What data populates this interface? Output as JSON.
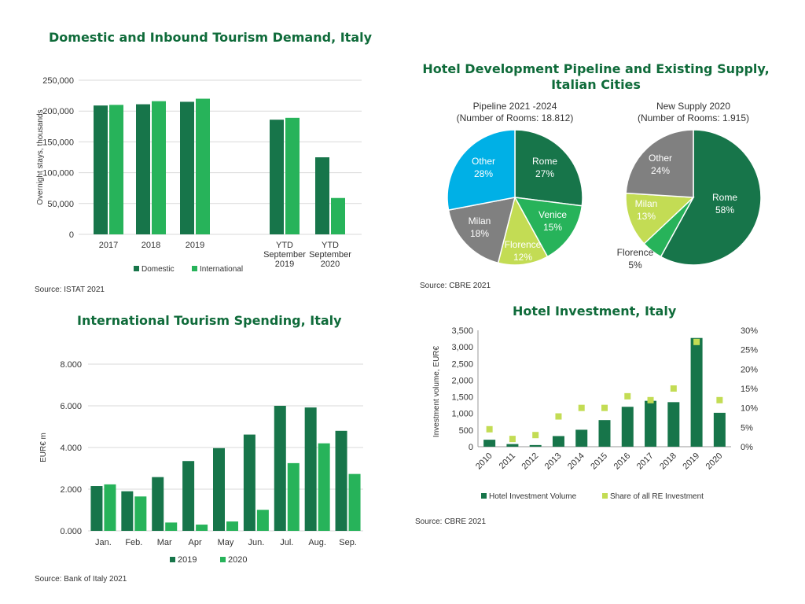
{
  "charts": {
    "domestic": {
      "title": "Domestic and Inbound Tourism Demand, Italy",
      "source": "Source: ISTAT 2021",
      "ylabel": "Overnight stays, thousands",
      "y_ticks": [
        "0",
        "50,000",
        "100,000",
        "150,000",
        "200,000",
        "250,000"
      ],
      "legend": [
        "Domestic",
        "International"
      ]
    },
    "pipeline": {
      "title_line1": "Hotel Development Pipeline and Existing Supply,",
      "title_line2": "Italian Cities",
      "source": "Source: CBRE 2021",
      "pie1_title_line1": "Pipeline 2021 -2024",
      "pie1_title_line2": "(Number of Rooms: 18.812)",
      "pie2_title_line1": "New Supply 2020",
      "pie2_title_line2": "(Number of Rooms: 1.915)"
    },
    "spending": {
      "title": "International Tourism Spending, Italy",
      "source": "Source: Bank of Italy 2021",
      "ylabel": "EUR€ m",
      "y_ticks": [
        "0.000",
        "2.000",
        "4.000",
        "6.000",
        "8.000"
      ],
      "legend": [
        "2019",
        "2020"
      ]
    },
    "investment": {
      "title": "Hotel Investment, Italy",
      "source": "Source: CBRE 2021",
      "ylabel": "Investment volume, EUR€",
      "y_ticks": [
        "0",
        "500",
        "1,000",
        "1,500",
        "2,000",
        "2,500",
        "3,000",
        "3,500"
      ],
      "y2_ticks": [
        "0%",
        "5%",
        "10%",
        "15%",
        "20%",
        "25%",
        "30%"
      ],
      "legend": [
        "Hotel Investment Volume",
        "Share of all RE Investment"
      ]
    }
  },
  "colors": {
    "dark_green": "#17754a",
    "bright_green": "#27b35a",
    "lime": "#c3dc54",
    "blue": "#00b0e6",
    "grey": "#808080",
    "title_green": "#0f6b3a"
  },
  "chart_data": [
    {
      "type": "bar",
      "title": "Domestic and Inbound Tourism Demand, Italy",
      "ylabel": "Overnight stays, thousands",
      "ylim": [
        0,
        250000
      ],
      "categories": [
        "2017",
        "2018",
        "2019",
        "YTD September 2019",
        "YTD September 2020"
      ],
      "series": [
        {
          "name": "Domestic",
          "values": [
            209000,
            211000,
            215000,
            186000,
            125000
          ]
        },
        {
          "name": "International",
          "values": [
            210000,
            216000,
            220000,
            189000,
            59000
          ]
        }
      ]
    },
    {
      "type": "pie",
      "title": "Pipeline 2021 -2024",
      "labels": [
        "Rome",
        "Venice",
        "Florence",
        "Milan",
        "Other"
      ],
      "values": [
        27,
        15,
        12,
        18,
        28
      ]
    },
    {
      "type": "pie",
      "title": "New Supply 2020",
      "labels": [
        "Rome",
        "Florence",
        "Milan",
        "Other"
      ],
      "values": [
        58,
        5,
        13,
        24
      ]
    },
    {
      "type": "bar",
      "title": "International Tourism Spending, Italy",
      "ylabel": "EUR€ m",
      "ylim": [
        0,
        8000
      ],
      "categories": [
        "Jan.",
        "Feb.",
        "Mar",
        "Apr",
        "May",
        "Jun.",
        "Jul.",
        "Aug.",
        "Sep."
      ],
      "series": [
        {
          "name": "2019",
          "values": [
            2150,
            1900,
            2580,
            3350,
            3970,
            4620,
            6000,
            5920,
            4800
          ]
        },
        {
          "name": "2020",
          "values": [
            2230,
            1650,
            400,
            300,
            450,
            1010,
            3250,
            4200,
            2730
          ]
        }
      ]
    },
    {
      "type": "bar",
      "title": "Hotel Investment, Italy",
      "ylabel": "Investment volume, EUR€",
      "ylim": [
        0,
        3500
      ],
      "y2lim": [
        0,
        30
      ],
      "categories": [
        "2010",
        "2011",
        "2012",
        "2013",
        "2014",
        "2015",
        "2016",
        "2017",
        "2018",
        "2019",
        "2020"
      ],
      "series": [
        {
          "name": "Hotel Investment Volume",
          "values": [
            210,
            80,
            50,
            320,
            510,
            800,
            1200,
            1380,
            1340,
            3270,
            1020
          ]
        },
        {
          "name": "Share of all RE Investment",
          "values": [
            4.5,
            2,
            3,
            7.8,
            10,
            10,
            13,
            12,
            15,
            27,
            12
          ]
        }
      ]
    }
  ]
}
